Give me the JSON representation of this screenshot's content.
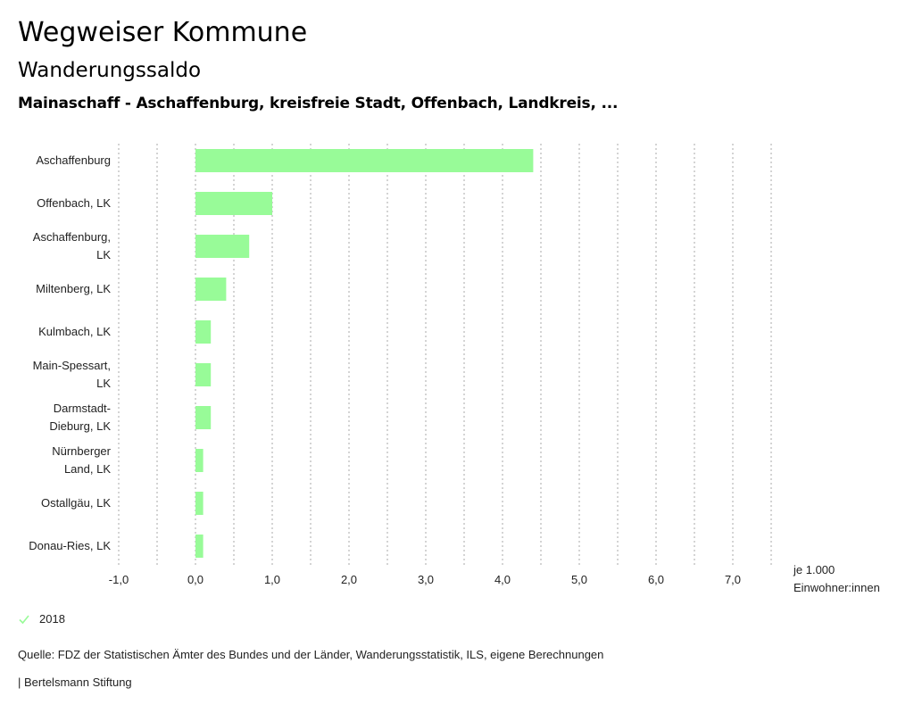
{
  "header": {
    "title": "Wegweiser Kommune",
    "subtitle": "Wanderungssaldo",
    "context": "Mainaschaff - Aschaffenburg, kreisfreie Stadt, Offenbach, Landkreis, ..."
  },
  "chart_data": {
    "type": "bar",
    "orientation": "horizontal",
    "title": "Wanderungssaldo",
    "categories": [
      [
        "Aschaffenburg"
      ],
      [
        "Offenbach, LK"
      ],
      [
        "Aschaffenburg,",
        "LK"
      ],
      [
        "Miltenberg, LK"
      ],
      [
        "Kulmbach, LK"
      ],
      [
        "Main-Spessart,",
        "LK"
      ],
      [
        "Darmstadt-",
        "Dieburg, LK"
      ],
      [
        "Nürnberger",
        "Land, LK"
      ],
      [
        "Ostallgäu, LK"
      ],
      [
        "Donau-Ries, LK"
      ]
    ],
    "series": [
      {
        "name": "2018",
        "values": [
          4.4,
          1.0,
          0.7,
          0.4,
          0.2,
          0.2,
          0.2,
          0.1,
          0.1,
          0.1
        ],
        "color": "#98fb98"
      }
    ],
    "xlim": [
      -1.0,
      7.5
    ],
    "xticks": [
      -1.0,
      0.0,
      1.0,
      2.0,
      3.0,
      4.0,
      5.0,
      6.0,
      7.0
    ],
    "xtick_labels": [
      "-1,0",
      "0,0",
      "1,0",
      "2,0",
      "3,0",
      "4,0",
      "5,0",
      "6,0",
      "7,0"
    ],
    "gridline_step": 0.5,
    "grid": true,
    "xlabel": [
      "je 1.000",
      "Einwohner:innen"
    ],
    "legend_position": "bottom-left"
  },
  "legend": {
    "label": "2018",
    "icon": "check-icon",
    "color": "#98fb98"
  },
  "footer": {
    "source": "Quelle: FDZ der Statistischen Ämter des Bundes und der Länder, Wanderungsstatistik, ILS, eigene Berechnungen",
    "credit": "| Bertelsmann Stiftung"
  }
}
